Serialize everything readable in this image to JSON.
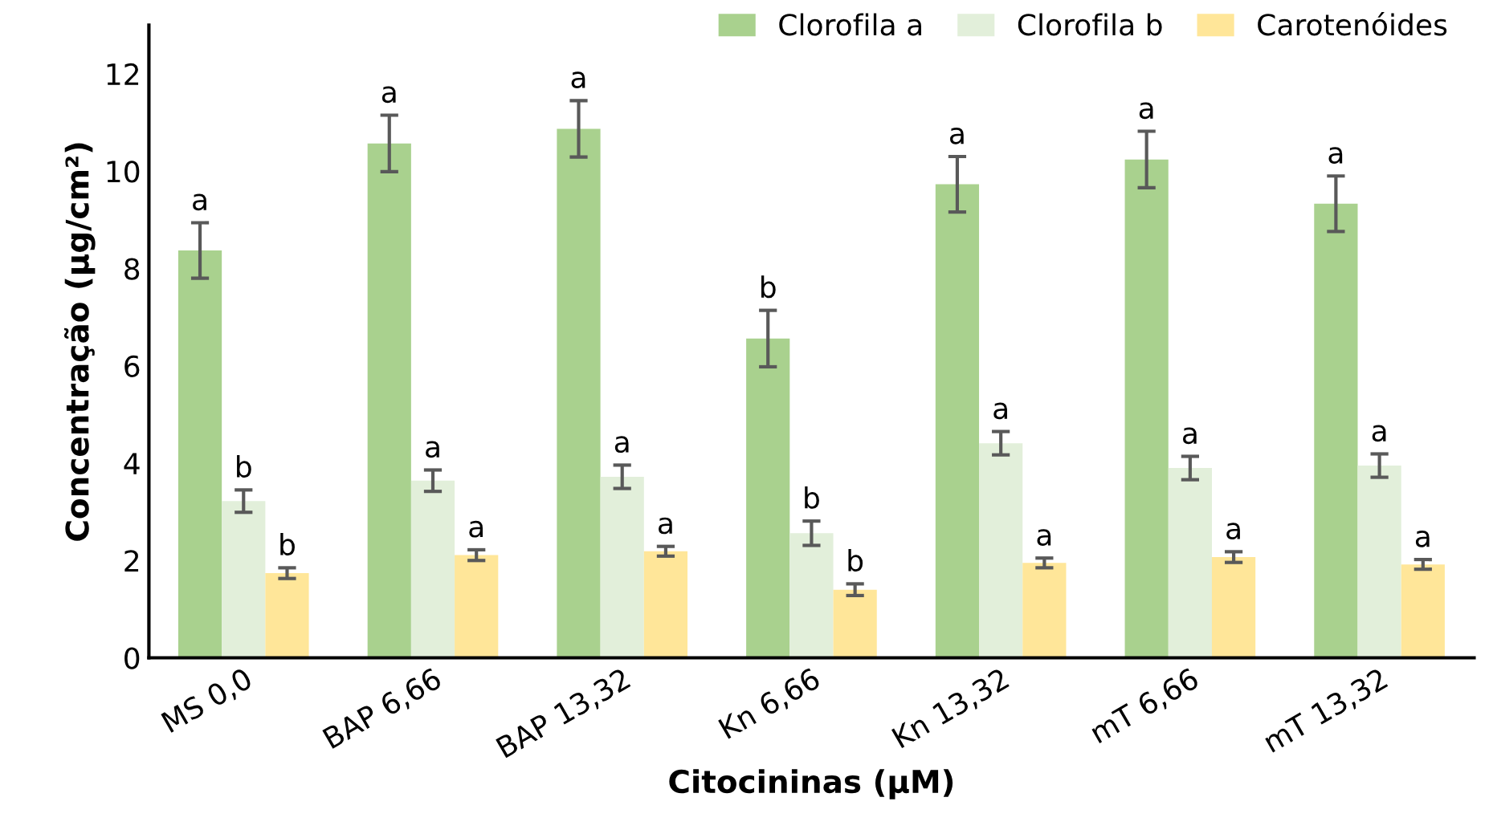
{
  "chart_data": {
    "type": "bar",
    "xlabel": "Citocininas (µM)",
    "ylabel": "Concentração (µg/cm²)",
    "categories": [
      "MS 0,0",
      "BAP 6,66",
      "BAP 13,32",
      "Kn 6,66",
      "Kn 13,32",
      "mT 6,66",
      "mT 13,32"
    ],
    "series": [
      {
        "name": "Clorofila a",
        "color": "#a9d18e",
        "values": [
          8.37,
          10.57,
          10.87,
          6.56,
          9.73,
          10.24,
          9.33
        ],
        "errors": [
          0.57,
          0.58,
          0.58,
          0.58,
          0.57,
          0.58,
          0.57
        ],
        "value_labels": [
          "a",
          "a",
          "a",
          "b",
          "a",
          "a",
          "a"
        ]
      },
      {
        "name": "Clorofila b",
        "color": "#e2efda",
        "values": [
          3.22,
          3.64,
          3.72,
          2.56,
          4.41,
          3.9,
          3.95
        ],
        "errors": [
          0.23,
          0.22,
          0.24,
          0.25,
          0.24,
          0.24,
          0.24
        ],
        "value_labels": [
          "b",
          "a",
          "a",
          "b",
          "a",
          "a",
          "a"
        ]
      },
      {
        "name": "Carotenóides",
        "color": "#ffe699",
        "values": [
          1.74,
          2.11,
          2.19,
          1.4,
          1.95,
          2.07,
          1.92
        ],
        "errors": [
          0.11,
          0.11,
          0.1,
          0.12,
          0.1,
          0.11,
          0.1
        ],
        "value_labels": [
          "b",
          "a",
          "a",
          "b",
          "a",
          "a",
          "a"
        ]
      }
    ],
    "ylim": [
      0,
      13
    ],
    "yticks": [
      0,
      2,
      4,
      6,
      8,
      10,
      12
    ],
    "grid": false,
    "legend": "top right"
  }
}
